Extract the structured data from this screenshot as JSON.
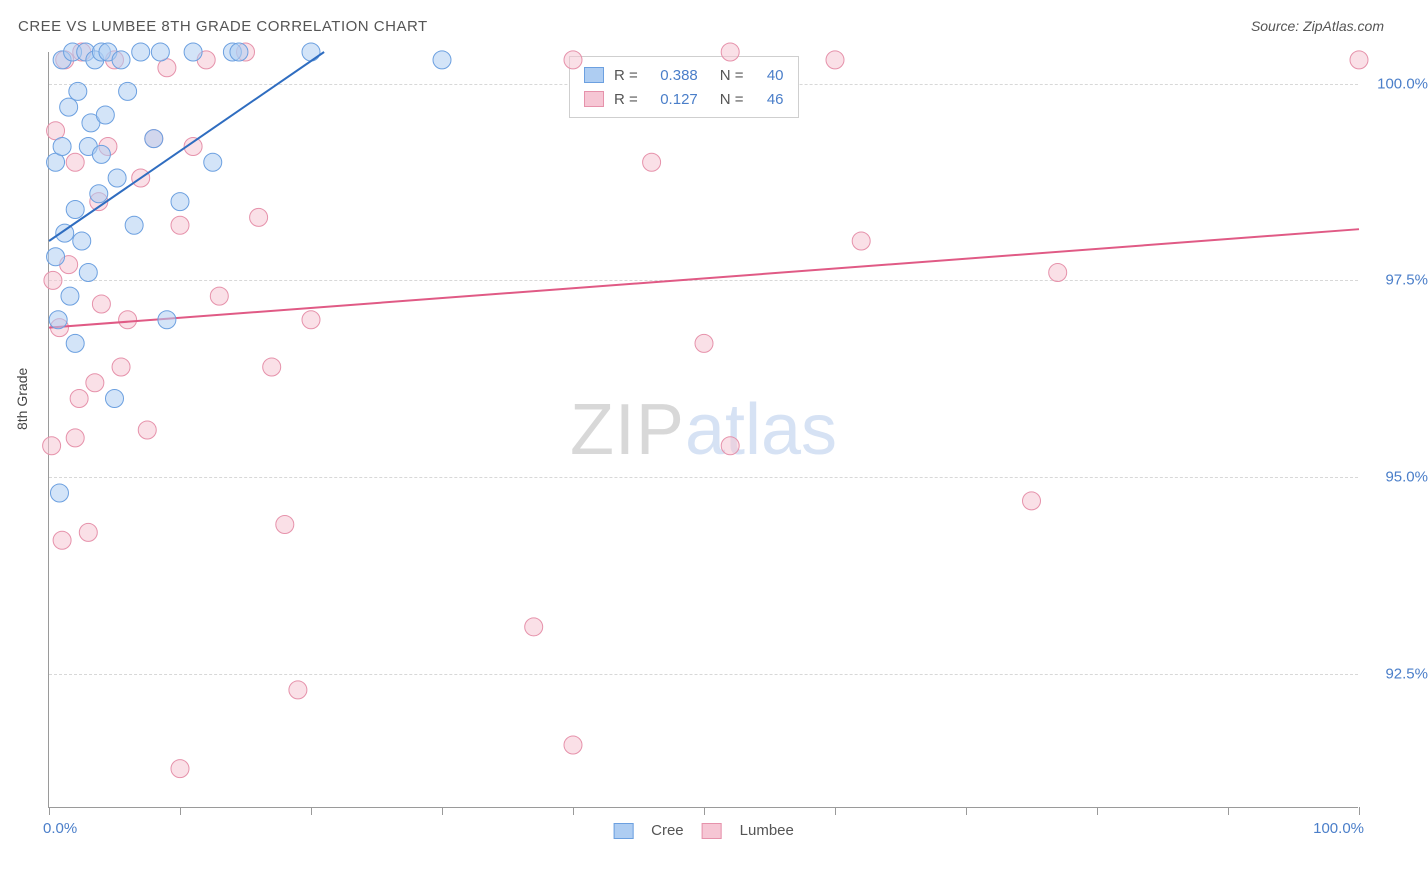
{
  "title": "CREE VS LUMBEE 8TH GRADE CORRELATION CHART",
  "source_label": "Source: ZipAtlas.com",
  "y_axis_label": "8th Grade",
  "watermark": {
    "part1": "ZIP",
    "part2": "atlas"
  },
  "chart": {
    "type": "scatter",
    "background_color": "#ffffff",
    "grid_color": "#d8d8d8",
    "axis_color": "#9a9a9a",
    "tick_label_color": "#4a7ec9",
    "xlim": [
      0,
      100
    ],
    "ylim": [
      90.8,
      100.4
    ],
    "x_ticks": [
      0,
      10,
      20,
      30,
      40,
      50,
      60,
      70,
      80,
      90,
      100
    ],
    "x_tick_labels": {
      "0": "0.0%",
      "100": "100.0%"
    },
    "y_gridlines": [
      92.5,
      95.0,
      97.5,
      100.0
    ],
    "y_tick_labels": [
      "92.5%",
      "95.0%",
      "97.5%",
      "100.0%"
    ],
    "marker_radius": 9,
    "marker_opacity": 0.55,
    "line_width": 2
  },
  "series": {
    "cree": {
      "label": "Cree",
      "fill_color": "#aecdf2",
      "stroke_color": "#6ca0e0",
      "line_color": "#2f6dc0",
      "R": "0.388",
      "N": "40",
      "trend": {
        "x1": 0,
        "y1": 98.0,
        "x2": 21,
        "y2": 100.4
      },
      "points": [
        [
          0.5,
          97.8
        ],
        [
          0.5,
          99.0
        ],
        [
          0.7,
          97.0
        ],
        [
          0.8,
          94.8
        ],
        [
          1.0,
          99.2
        ],
        [
          1.0,
          100.3
        ],
        [
          1.2,
          98.1
        ],
        [
          1.5,
          99.7
        ],
        [
          1.6,
          97.3
        ],
        [
          1.8,
          100.4
        ],
        [
          2.0,
          96.7
        ],
        [
          2.0,
          98.4
        ],
        [
          2.2,
          99.9
        ],
        [
          2.5,
          98.0
        ],
        [
          2.8,
          100.4
        ],
        [
          3.0,
          99.2
        ],
        [
          3.0,
          97.6
        ],
        [
          3.2,
          99.5
        ],
        [
          3.5,
          100.3
        ],
        [
          3.8,
          98.6
        ],
        [
          4.0,
          100.4
        ],
        [
          4.0,
          99.1
        ],
        [
          4.3,
          99.6
        ],
        [
          4.5,
          100.4
        ],
        [
          5.0,
          96.0
        ],
        [
          5.2,
          98.8
        ],
        [
          5.5,
          100.3
        ],
        [
          6.0,
          99.9
        ],
        [
          6.5,
          98.2
        ],
        [
          7.0,
          100.4
        ],
        [
          8.0,
          99.3
        ],
        [
          8.5,
          100.4
        ],
        [
          9.0,
          97.0
        ],
        [
          10.0,
          98.5
        ],
        [
          11.0,
          100.4
        ],
        [
          12.5,
          99.0
        ],
        [
          14.0,
          100.4
        ],
        [
          14.5,
          100.4
        ],
        [
          20.0,
          100.4
        ],
        [
          30.0,
          100.3
        ]
      ]
    },
    "lumbee": {
      "label": "Lumbee",
      "fill_color": "#f6c6d4",
      "stroke_color": "#e692ab",
      "line_color": "#e05a85",
      "R": "0.127",
      "N": "46",
      "trend": {
        "x1": 0,
        "y1": 96.9,
        "x2": 100,
        "y2": 98.15
      },
      "points": [
        [
          0.2,
          95.4
        ],
        [
          0.3,
          97.5
        ],
        [
          0.5,
          99.4
        ],
        [
          0.8,
          96.9
        ],
        [
          1.0,
          94.2
        ],
        [
          1.2,
          100.3
        ],
        [
          1.5,
          97.7
        ],
        [
          2.0,
          95.5
        ],
        [
          2.0,
          99.0
        ],
        [
          2.3,
          96.0
        ],
        [
          2.5,
          100.4
        ],
        [
          3.0,
          94.3
        ],
        [
          3.5,
          96.2
        ],
        [
          3.8,
          98.5
        ],
        [
          4.0,
          97.2
        ],
        [
          4.5,
          99.2
        ],
        [
          5.0,
          100.3
        ],
        [
          5.5,
          96.4
        ],
        [
          6.0,
          97.0
        ],
        [
          7.0,
          98.8
        ],
        [
          7.5,
          95.6
        ],
        [
          8.0,
          99.3
        ],
        [
          9.0,
          100.2
        ],
        [
          10.0,
          98.2
        ],
        [
          10.0,
          91.3
        ],
        [
          11.0,
          99.2
        ],
        [
          12.0,
          100.3
        ],
        [
          13.0,
          97.3
        ],
        [
          15.0,
          100.4
        ],
        [
          16.0,
          98.3
        ],
        [
          17.0,
          96.4
        ],
        [
          18.0,
          94.4
        ],
        [
          19.0,
          92.3
        ],
        [
          20.0,
          97.0
        ],
        [
          37.0,
          93.1
        ],
        [
          40.0,
          91.6
        ],
        [
          40.0,
          100.3
        ],
        [
          46.0,
          99.0
        ],
        [
          50.0,
          96.7
        ],
        [
          52.0,
          95.4
        ],
        [
          60.0,
          100.3
        ],
        [
          62.0,
          98.0
        ],
        [
          75.0,
          94.7
        ],
        [
          77.0,
          97.6
        ],
        [
          100.0,
          100.3
        ],
        [
          52.0,
          100.4
        ]
      ]
    }
  },
  "legend_bottom": [
    "Cree",
    "Lumbee"
  ]
}
